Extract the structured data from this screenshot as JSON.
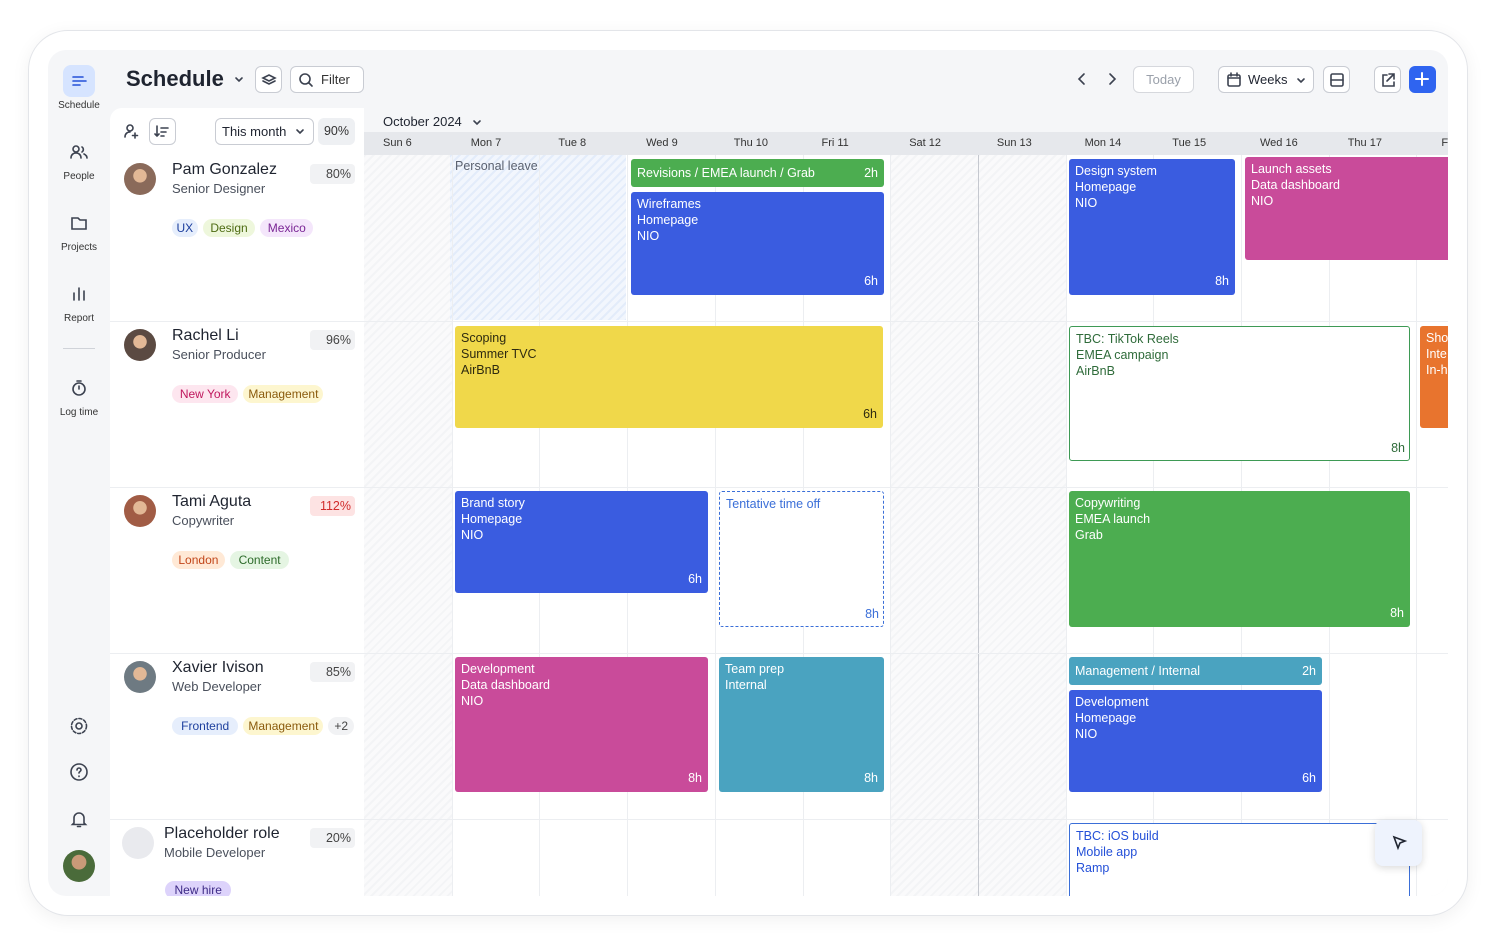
{
  "sidebar": {
    "items": [
      "Schedule",
      "People",
      "Projects",
      "Report",
      "Log time"
    ]
  },
  "header": {
    "title": "Schedule",
    "filter": "Filter",
    "today": "Today",
    "view": "Weeks"
  },
  "toolbar": {
    "range": "This month",
    "utilization": "90%",
    "month": "October 2024"
  },
  "days": [
    "Sun 6",
    "Mon 7",
    "Tue 8",
    "Wed 9",
    "Thu 10",
    "Fri 11",
    "Sat 12",
    "Sun 13",
    "Mon 14",
    "Tue 15",
    "Wed 16",
    "Thu 17",
    "Fri"
  ],
  "people": [
    {
      "name": "Pam Gonzalez",
      "role": "Senior Designer",
      "utilization": "80%",
      "tags": [
        "UX",
        "Design",
        "Mexico"
      ]
    },
    {
      "name": "Rachel Li",
      "role": "Senior Producer",
      "utilization": "96%",
      "tags": [
        "New York",
        "Management"
      ]
    },
    {
      "name": "Tami Aguta",
      "role": "Copywriter",
      "utilization": "112%",
      "tags": [
        "London",
        "Content"
      ]
    },
    {
      "name": "Xavier Ivison",
      "role": "Web Developer",
      "utilization": "85%",
      "tags": [
        "Frontend",
        "Management",
        "+2"
      ]
    },
    {
      "name": "Placeholder role",
      "role": "Mobile Developer",
      "utilization": "20%",
      "tags": [
        "New hire"
      ]
    }
  ],
  "personal_leave": "Personal leave",
  "events": [
    {
      "lines": [
        "Revisions / EMEA launch / Grab"
      ],
      "hours": "2h"
    },
    {
      "lines": [
        "Wireframes",
        "Homepage",
        "NIO"
      ],
      "hours": "6h"
    },
    {
      "lines": [
        "Design system",
        "Homepage",
        "NIO"
      ],
      "hours": "8h"
    },
    {
      "lines": [
        "Launch assets",
        "Data dashboard",
        "NIO"
      ]
    },
    {
      "lines": [
        "Scoping",
        "Summer TVC",
        "AirBnB"
      ],
      "hours": "6h"
    },
    {
      "lines": [
        "TBC: TikTok Reels",
        "EMEA campaign",
        "AirBnB"
      ],
      "hours": "8h"
    },
    {
      "lines": [
        "Sho",
        "Inte",
        "In-h"
      ]
    },
    {
      "lines": [
        "Brand story",
        "Homepage",
        "NIO"
      ],
      "hours": "6h"
    },
    {
      "lines": [
        "Tentative time off"
      ],
      "hours": "8h"
    },
    {
      "lines": [
        "Copywriting",
        "EMEA launch",
        "Grab"
      ],
      "hours": "8h"
    },
    {
      "lines": [
        "Development",
        "Data dashboard",
        "NIO"
      ],
      "hours": "8h"
    },
    {
      "lines": [
        "Team prep",
        "Internal"
      ],
      "hours": "8h"
    },
    {
      "lines": [
        "Management / Internal"
      ],
      "hours": "2h"
    },
    {
      "lines": [
        "Development",
        "Homepage",
        "NIO"
      ],
      "hours": "6h"
    },
    {
      "lines": [
        "TBC: iOS build",
        "Mobile app",
        "Ramp"
      ]
    }
  ]
}
